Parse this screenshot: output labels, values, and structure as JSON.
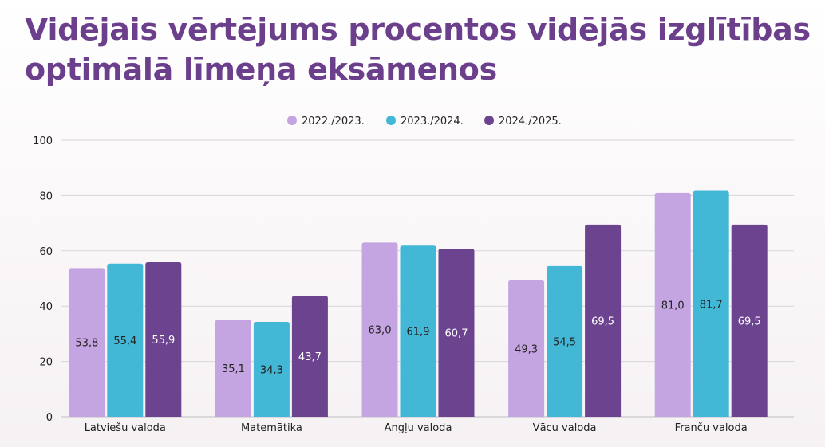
{
  "title_lines": [
    "Vidējais vērtējums procentos vidējās izglītības",
    "optimālā līmeņa eksāmenos"
  ],
  "chart_data": {
    "type": "bar",
    "title": "Vidējais vērtējums procentos vidējās izglītības optimālā līmeņa eksāmenos",
    "categories": [
      "Latviešu valoda",
      "Matemātika",
      "Angļu valoda",
      "Vācu valoda",
      "Franču valoda"
    ],
    "series": [
      {
        "name": "2022./2023.",
        "color": "#c4a5e2",
        "label_color": "#222222",
        "values": [
          53.8,
          35.1,
          63.0,
          49.3,
          81.0
        ],
        "labels": [
          "53,8",
          "35,1",
          "63,0",
          "49,3",
          "81,0"
        ]
      },
      {
        "name": "2023./2024.",
        "color": "#42b8d6",
        "label_color": "#222222",
        "values": [
          55.4,
          34.3,
          61.9,
          54.5,
          81.7
        ],
        "labels": [
          "55,4",
          "34,3",
          "61,9",
          "54,5",
          "81,7"
        ]
      },
      {
        "name": "2024./2025.",
        "color": "#6b438e",
        "label_color": "#ffffff",
        "values": [
          55.9,
          43.7,
          60.7,
          69.5,
          69.5
        ],
        "labels": [
          "55,9",
          "43,7",
          "60,7",
          "69,5",
          "69,5"
        ]
      }
    ],
    "ylim": [
      0,
      100
    ],
    "yticks": [
      "0",
      "20",
      "40",
      "60",
      "80",
      "100"
    ],
    "grid": true,
    "legend_position": "top-center",
    "xlabel": "",
    "ylabel": ""
  }
}
